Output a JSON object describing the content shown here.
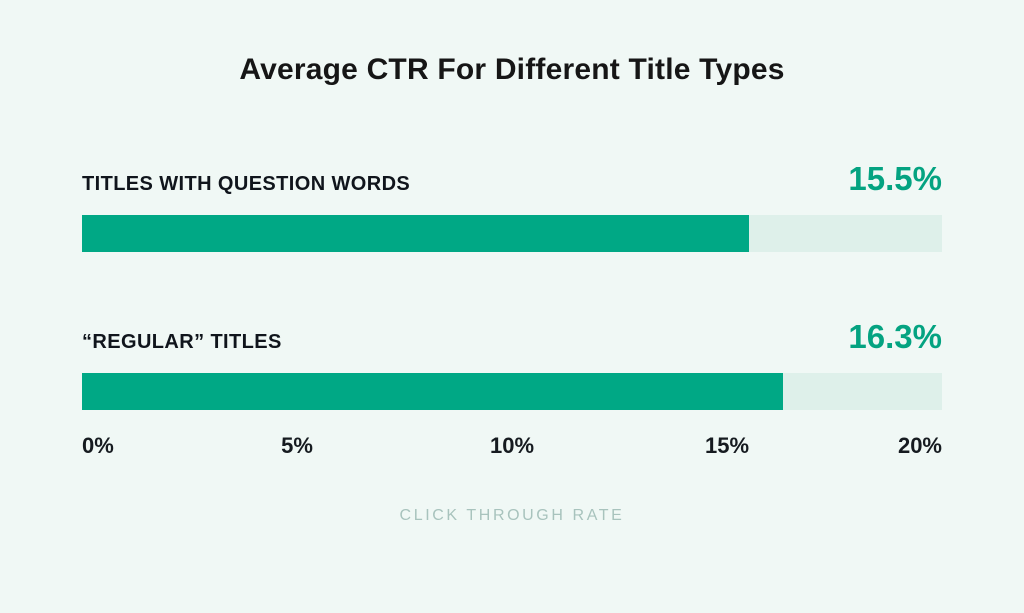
{
  "chart_data": {
    "type": "bar",
    "orientation": "horizontal",
    "title": "Average CTR For Different Title Types",
    "categories": [
      "TITLES WITH QUESTION WORDS",
      "“REGULAR” TITLES"
    ],
    "values": [
      15.5,
      16.3
    ],
    "value_labels": [
      "15.5%",
      "16.3%"
    ],
    "xlabel": "CLICK THROUGH RATE",
    "xlim": [
      0,
      20
    ],
    "x_ticks": [
      "0%",
      "5%",
      "10%",
      "15%",
      "20%"
    ],
    "grid": false,
    "legend": "none",
    "colors": {
      "background": "#f0f8f5",
      "bar_fill": "#00a885",
      "bar_track": "#def0ea",
      "value_text": "#04a381",
      "title_text": "#161616",
      "label_text": "#10151c",
      "axis_text": "#161b20",
      "caption_text": "#a8c3bd"
    }
  },
  "title": "Average CTR For Different Title Types",
  "bars": [
    {
      "label": "TITLES WITH QUESTION WORDS",
      "value": 15.5,
      "value_label": "15.5%"
    },
    {
      "label": "“REGULAR” TITLES",
      "value": 16.3,
      "value_label": "16.3%"
    }
  ],
  "axis": {
    "max": 20,
    "ticks": [
      "0%",
      "5%",
      "10%",
      "15%",
      "20%"
    ]
  },
  "footer": {
    "label": "CLICK THROUGH RATE"
  }
}
